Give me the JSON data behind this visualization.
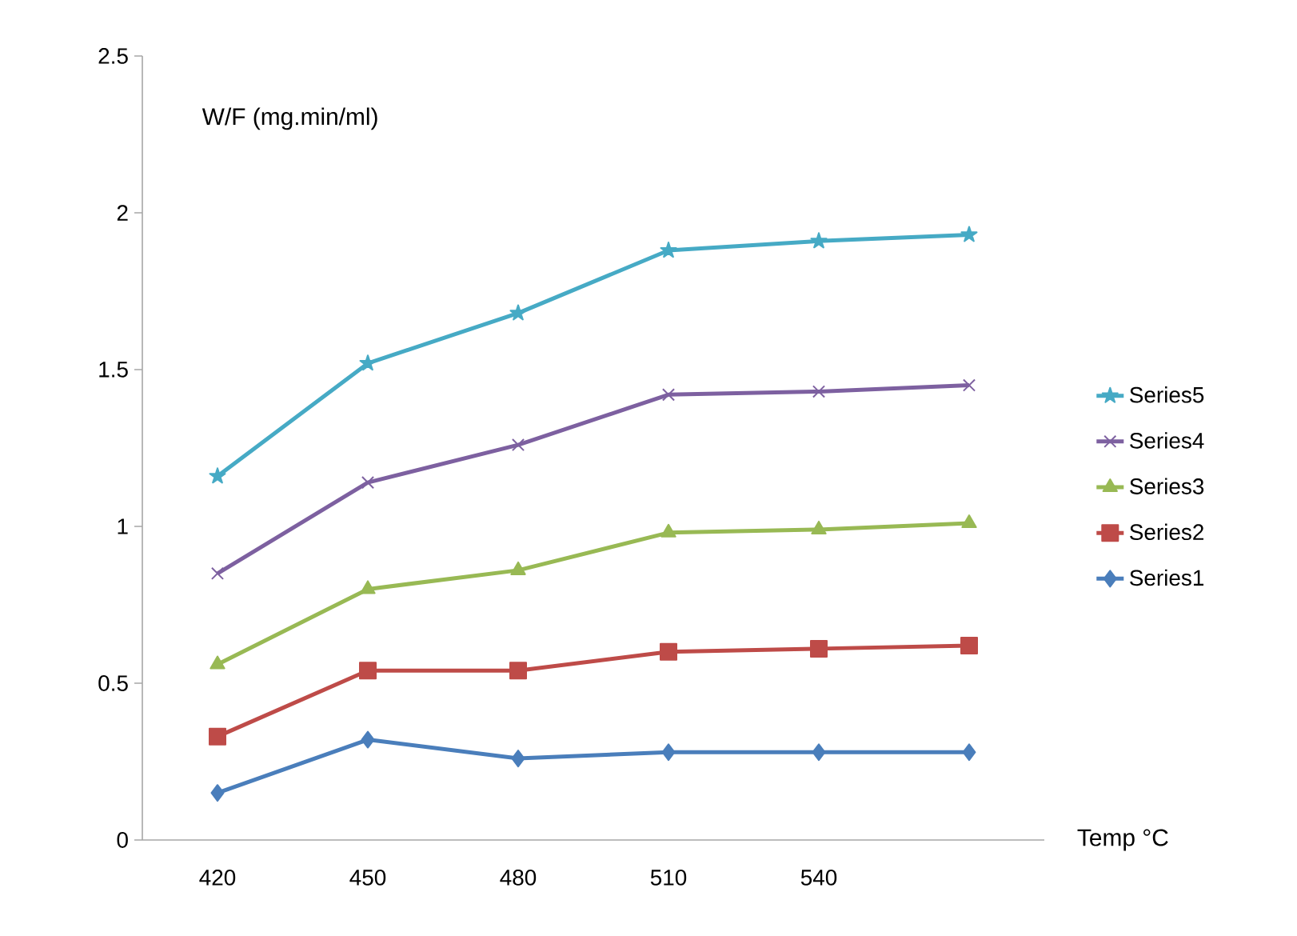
{
  "chart_data": {
    "type": "line",
    "ylabel": "W/F (mg.min/ml)",
    "xlabel": "Temp °C",
    "categories": [
      "420",
      "450",
      "480",
      "510",
      "540",
      null
    ],
    "ylim": [
      0,
      2.5
    ],
    "yticks": [
      0,
      0.5,
      1,
      1.5,
      2,
      2.5
    ],
    "grid": false,
    "legend": "right",
    "line_style": "solid",
    "series": [
      {
        "name": "Series1",
        "color": "#4a7ebb",
        "marker": "diamond",
        "values": [
          0.15,
          0.32,
          0.26,
          0.28,
          0.28,
          0.28
        ]
      },
      {
        "name": "Series2",
        "color": "#be4b48",
        "marker": "square",
        "values": [
          0.33,
          0.54,
          0.54,
          0.6,
          0.61,
          0.62
        ]
      },
      {
        "name": "Series3",
        "color": "#98b954",
        "marker": "triangle",
        "values": [
          0.56,
          0.8,
          0.86,
          0.98,
          0.99,
          1.01
        ]
      },
      {
        "name": "Series4",
        "color": "#7d60a0",
        "marker": "cross",
        "values": [
          0.85,
          1.14,
          1.26,
          1.42,
          1.43,
          1.45
        ]
      },
      {
        "name": "Series5",
        "color": "#46aac5",
        "marker": "star",
        "values": [
          1.16,
          1.52,
          1.68,
          1.88,
          1.91,
          1.93
        ]
      }
    ]
  }
}
